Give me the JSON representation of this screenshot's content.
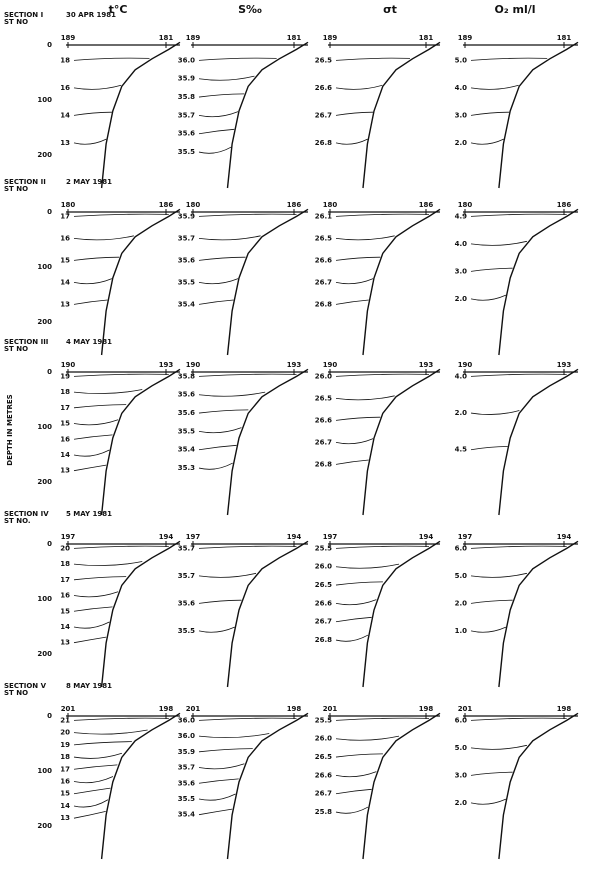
{
  "column_headers": [
    "t°C",
    "S‰",
    "σt",
    "O₂ ml/l"
  ],
  "y_axis_label": "DEPTH IN METRES",
  "sections": [
    {
      "title": "SECTION I",
      "date": "30 APR 1981",
      "station_label": "ST NO",
      "depth_ticks": [
        "0",
        "100",
        "200"
      ],
      "panels": [
        {
          "stations": [
            "189",
            "181"
          ],
          "contours": [
            "18",
            "16",
            "14",
            "13"
          ]
        },
        {
          "stations": [
            "189",
            "181"
          ],
          "contours": [
            "36.0",
            "35.9",
            "35.8",
            "35.7",
            "35.6",
            "35.5"
          ]
        },
        {
          "stations": [
            "189",
            "181"
          ],
          "contours": [
            "26.5",
            "26.6",
            "26.7",
            "26.8"
          ]
        },
        {
          "stations": [
            "189",
            "181"
          ],
          "contours": [
            "5.0",
            "4.0",
            "3.0",
            "2.0"
          ]
        }
      ]
    },
    {
      "title": "SECTION II",
      "date": "2 MAY 1981",
      "station_label": "ST NO",
      "depth_ticks": [
        "0",
        "100",
        "200"
      ],
      "panels": [
        {
          "stations": [
            "180",
            "186"
          ],
          "contours": [
            "17",
            "16",
            "15",
            "14",
            "13"
          ]
        },
        {
          "stations": [
            "180",
            "186"
          ],
          "contours": [
            "35.9",
            "35.7",
            "35.6",
            "35.5",
            "35.4"
          ]
        },
        {
          "stations": [
            "180",
            "186"
          ],
          "contours": [
            "26.1",
            "26.5",
            "26.6",
            "26.7",
            "26.8"
          ]
        },
        {
          "stations": [
            "180",
            "186"
          ],
          "contours": [
            "4.9",
            "4.0",
            "3.0",
            "2.0"
          ]
        }
      ]
    },
    {
      "title": "SECTION III",
      "date": "4 MAY 1981",
      "station_label": "ST NO",
      "depth_ticks": [
        "0",
        "100",
        "200"
      ],
      "panels": [
        {
          "stations": [
            "190",
            "193"
          ],
          "contours": [
            "19",
            "18",
            "17",
            "15",
            "16",
            "14",
            "13"
          ]
        },
        {
          "stations": [
            "190",
            "193"
          ],
          "contours": [
            "35.8",
            "35.6",
            "35.6",
            "35.5",
            "35.4",
            "35.3"
          ]
        },
        {
          "stations": [
            "190",
            "193"
          ],
          "contours": [
            "26.0",
            "26.5",
            "26.6",
            "26.7",
            "26.8"
          ]
        },
        {
          "stations": [
            "190",
            "193"
          ],
          "contours": [
            "4.0",
            "2.0",
            "4.5"
          ]
        }
      ]
    },
    {
      "title": "SECTION IV",
      "date": "5 MAY 1981",
      "station_label": "ST NO.",
      "depth_ticks": [
        "0",
        "100",
        "200"
      ],
      "panels": [
        {
          "stations": [
            "197",
            "194"
          ],
          "contours": [
            "20",
            "18",
            "17",
            "16",
            "15",
            "14",
            "13"
          ]
        },
        {
          "stations": [
            "197",
            "194"
          ],
          "contours": [
            "35.7",
            "35.7",
            "35.6",
            "35.5"
          ]
        },
        {
          "stations": [
            "197",
            "194"
          ],
          "contours": [
            "25.5",
            "26.0",
            "26.5",
            "26.6",
            "26.7",
            "26.8"
          ]
        },
        {
          "stations": [
            "197",
            "194"
          ],
          "contours": [
            "6.0",
            "5.0",
            "2.0",
            "1.0"
          ]
        }
      ]
    },
    {
      "title": "SECTION V",
      "date": "8 MAY 1981",
      "station_label": "ST NO",
      "depth_ticks": [
        "0",
        "100",
        "200"
      ],
      "panels": [
        {
          "stations": [
            "201",
            "198"
          ],
          "contours": [
            "21",
            "20",
            "19",
            "18",
            "17",
            "16",
            "15",
            "14",
            "13"
          ]
        },
        {
          "stations": [
            "201",
            "198"
          ],
          "contours": [
            "36.0",
            "36.0",
            "35.9",
            "35.7",
            "35.6",
            "35.5",
            "35.4"
          ]
        },
        {
          "stations": [
            "201",
            "198"
          ],
          "contours": [
            "25.5",
            "26.0",
            "26.5",
            "26.6",
            "26.7",
            "25.8"
          ]
        },
        {
          "stations": [
            "201",
            "198"
          ],
          "contours": [
            "6.0",
            "5.0",
            "3.0",
            "2.0"
          ]
        }
      ]
    }
  ]
}
